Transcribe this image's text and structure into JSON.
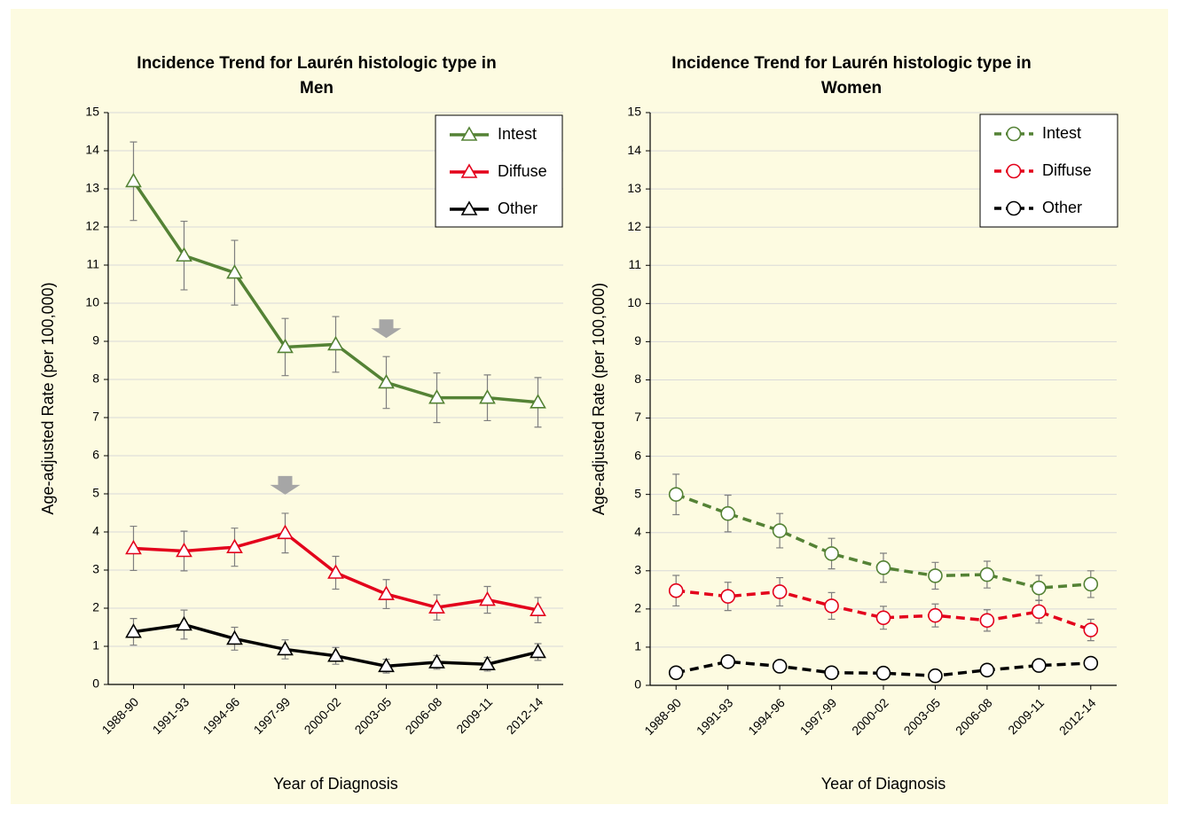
{
  "chart_data": [
    {
      "type": "line",
      "title": [
        "Incidence Trend for Laurén histologic type in",
        "Men"
      ],
      "xlabel": "Year of Diagnosis",
      "ylabel": "Age-adjusted Rate (per 100,000)",
      "categories": [
        "1988-90",
        "1991-93",
        "1994-96",
        "1997-99",
        "2000-02",
        "2003-05",
        "2006-08",
        "2009-11",
        "2012-14"
      ],
      "ylim": [
        0,
        15
      ],
      "yticks": [
        0,
        1,
        2,
        3,
        4,
        5,
        6,
        7,
        8,
        9,
        10,
        11,
        12,
        13,
        14,
        15
      ],
      "grid": true,
      "legend": "upper right",
      "marker": "triangle",
      "dashed": false,
      "series": [
        {
          "name": "Intest",
          "color": "#548235",
          "values": [
            13.2,
            11.25,
            10.8,
            8.85,
            8.92,
            7.92,
            7.52,
            7.52,
            7.4
          ],
          "errors": [
            1.03,
            0.9,
            0.85,
            0.75,
            0.73,
            0.68,
            0.65,
            0.6,
            0.65
          ]
        },
        {
          "name": "Diffuse",
          "color": "#e3001b",
          "values": [
            3.57,
            3.5,
            3.6,
            3.97,
            2.93,
            2.37,
            2.02,
            2.22,
            1.95
          ],
          "errors": [
            0.58,
            0.52,
            0.5,
            0.52,
            0.43,
            0.38,
            0.33,
            0.35,
            0.33
          ]
        },
        {
          "name": "Other",
          "color": "#000000",
          "values": [
            1.38,
            1.57,
            1.2,
            0.92,
            0.75,
            0.48,
            0.58,
            0.53,
            0.85
          ],
          "errors": [
            0.35,
            0.38,
            0.3,
            0.25,
            0.22,
            0.18,
            0.18,
            0.18,
            0.22
          ]
        }
      ]
    },
    {
      "type": "line",
      "title": [
        "Incidence Trend for Laurén histologic type in",
        "Women"
      ],
      "xlabel": "Year of Diagnosis",
      "ylabel": "Age-adjusted Rate (per 100,000)",
      "categories": [
        "1988-90",
        "1991-93",
        "1994-96",
        "1997-99",
        "2000-02",
        "2003-05",
        "2006-08",
        "2009-11",
        "2012-14"
      ],
      "ylim": [
        0,
        15
      ],
      "yticks": [
        0,
        1,
        2,
        3,
        4,
        5,
        6,
        7,
        8,
        9,
        10,
        11,
        12,
        13,
        14,
        15
      ],
      "grid": true,
      "legend": "upper right",
      "marker": "circle",
      "dashed": true,
      "series": [
        {
          "name": "Intest",
          "color": "#548235",
          "values": [
            5.0,
            4.5,
            4.05,
            3.45,
            3.08,
            2.87,
            2.9,
            2.55,
            2.65
          ],
          "errors": [
            0.53,
            0.48,
            0.45,
            0.4,
            0.38,
            0.35,
            0.35,
            0.33,
            0.35
          ]
        },
        {
          "name": "Diffuse",
          "color": "#e3001b",
          "values": [
            2.48,
            2.33,
            2.45,
            2.08,
            1.77,
            1.83,
            1.7,
            1.93,
            1.45
          ],
          "errors": [
            0.4,
            0.37,
            0.37,
            0.35,
            0.3,
            0.3,
            0.28,
            0.3,
            0.28
          ]
        },
        {
          "name": "Other",
          "color": "#000000",
          "values": [
            0.33,
            0.62,
            0.5,
            0.33,
            0.32,
            0.25,
            0.4,
            0.52,
            0.58
          ],
          "errors": [
            0.1,
            0.15,
            0.1,
            0.1,
            0.08,
            0.08,
            0.1,
            0.1,
            0.1
          ]
        }
      ]
    }
  ]
}
